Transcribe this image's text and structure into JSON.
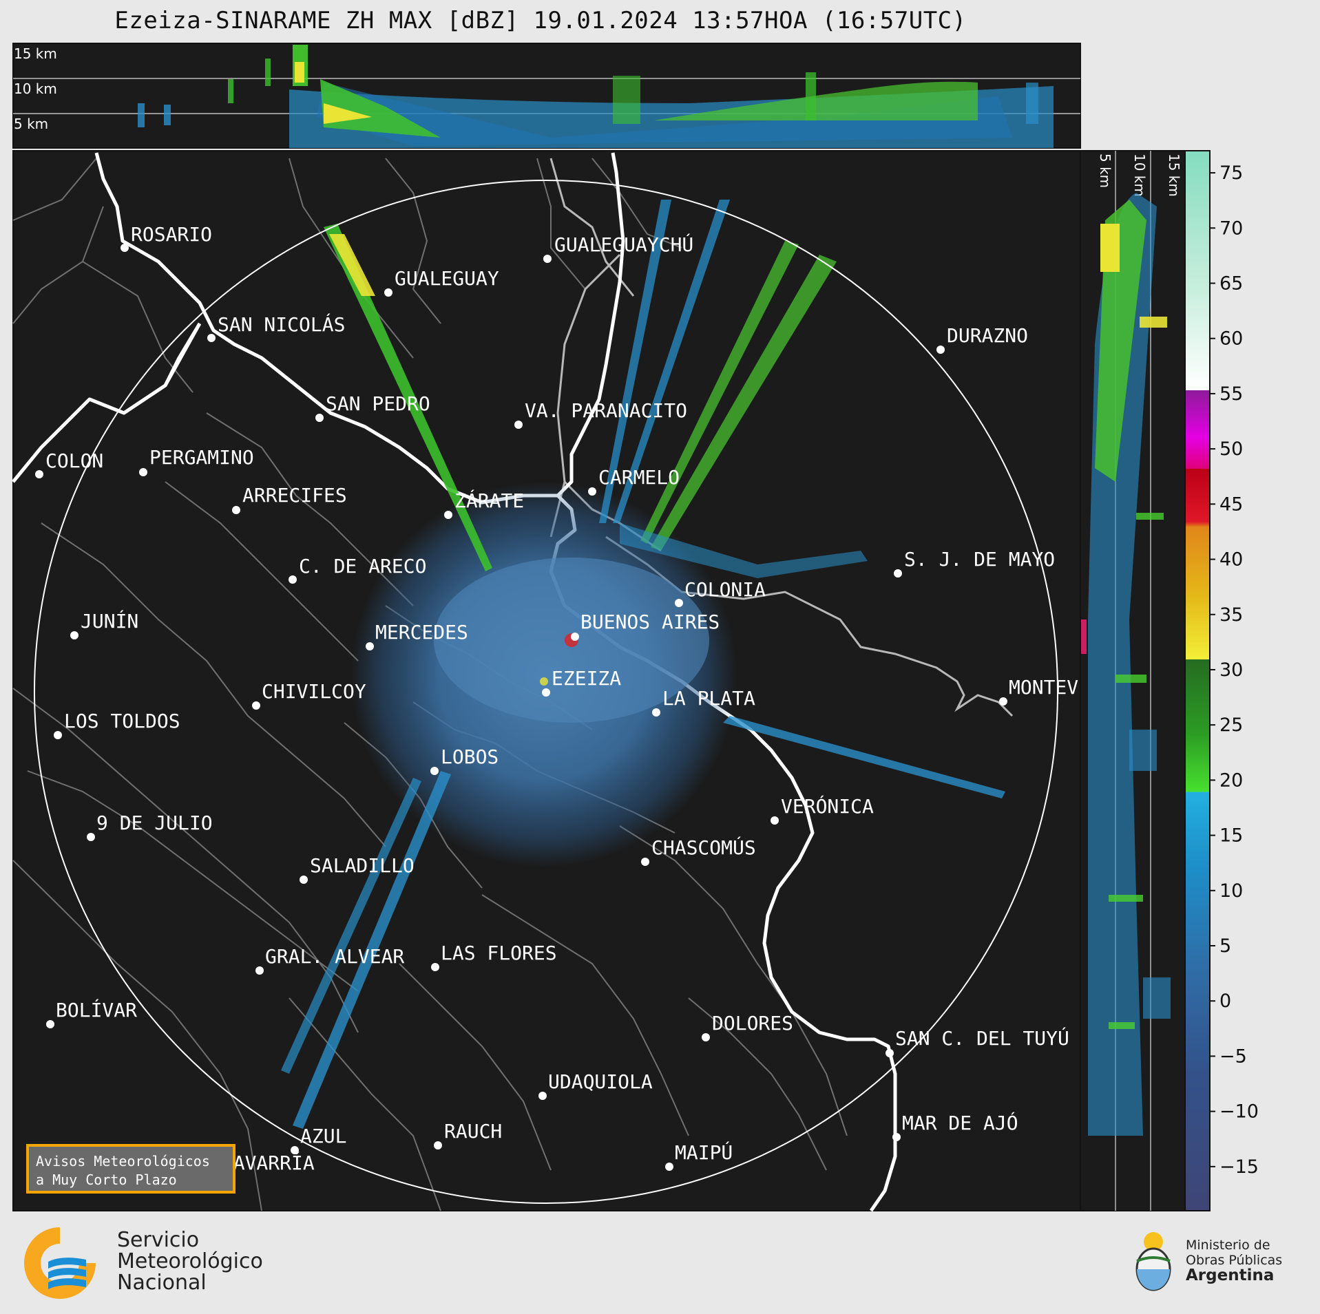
{
  "title": "Ezeiza-SINARAME ZH MAX [dBZ] 19.01.2024 13:57HOA (16:57UTC)",
  "height_labels": [
    "15 km",
    "10 km",
    "5 km"
  ],
  "cities": [
    {
      "name": "ROSARIO"
    },
    {
      "name": "GUALEGUAYCHÚ"
    },
    {
      "name": "GUALEGUAY"
    },
    {
      "name": "SAN NICOLÁS"
    },
    {
      "name": "DURAZNO"
    },
    {
      "name": "SAN PEDRO"
    },
    {
      "name": "VA. PARANACITO"
    },
    {
      "name": "COLON"
    },
    {
      "name": "PERGAMINO"
    },
    {
      "name": "CARMELO"
    },
    {
      "name": "ARRECIFES"
    },
    {
      "name": "ZÁRATE"
    },
    {
      "name": "S. J. DE MAYO"
    },
    {
      "name": "C. DE ARECO"
    },
    {
      "name": "COLONIA"
    },
    {
      "name": "BUENOS AIRES"
    },
    {
      "name": "JUNÍN"
    },
    {
      "name": "MERCEDES"
    },
    {
      "name": "EZEIZA"
    },
    {
      "name": "MONTEV"
    },
    {
      "name": "CHIVILCOY"
    },
    {
      "name": "LA PLATA"
    },
    {
      "name": "LOS TOLDOS"
    },
    {
      "name": "LOBOS"
    },
    {
      "name": "VERÓNICA"
    },
    {
      "name": "9 DE JULIO"
    },
    {
      "name": "CHASCOMÚS"
    },
    {
      "name": "SALADILLO"
    },
    {
      "name": "GRAL. ALVEAR"
    },
    {
      "name": "LAS FLORES"
    },
    {
      "name": "BOLÍVAR"
    },
    {
      "name": "DOLORES"
    },
    {
      "name": "SAN C. DEL TUYÚ"
    },
    {
      "name": "UDAQUIOLA"
    },
    {
      "name": "MAR DE AJÓ"
    },
    {
      "name": "AZUL"
    },
    {
      "name": "RAUCH"
    },
    {
      "name": "OLAVARRÍA"
    },
    {
      "name": "MAIPÚ"
    }
  ],
  "colorbar": {
    "ticks": [
      "75",
      "70",
      "65",
      "60",
      "55",
      "50",
      "45",
      "40",
      "35",
      "30",
      "25",
      "20",
      "15",
      "10",
      "5",
      "0",
      "−5",
      "−10",
      "−15"
    ],
    "min": -19,
    "max": 77
  },
  "warning": {
    "line1": "Avisos Meteorológicos",
    "line2": "a Muy Corto Plazo"
  },
  "logo_smn": {
    "line1": "Servicio",
    "line2": "Meteorológico",
    "line3": "Nacional"
  },
  "logo_ministry": {
    "line1": "Ministerio de",
    "line2": "Obras Públicas",
    "line3": "Argentina"
  },
  "colors": {
    "map_bg": "#1b1b1b",
    "page_bg": "#e8e8e8",
    "accent": "#f5a400"
  }
}
